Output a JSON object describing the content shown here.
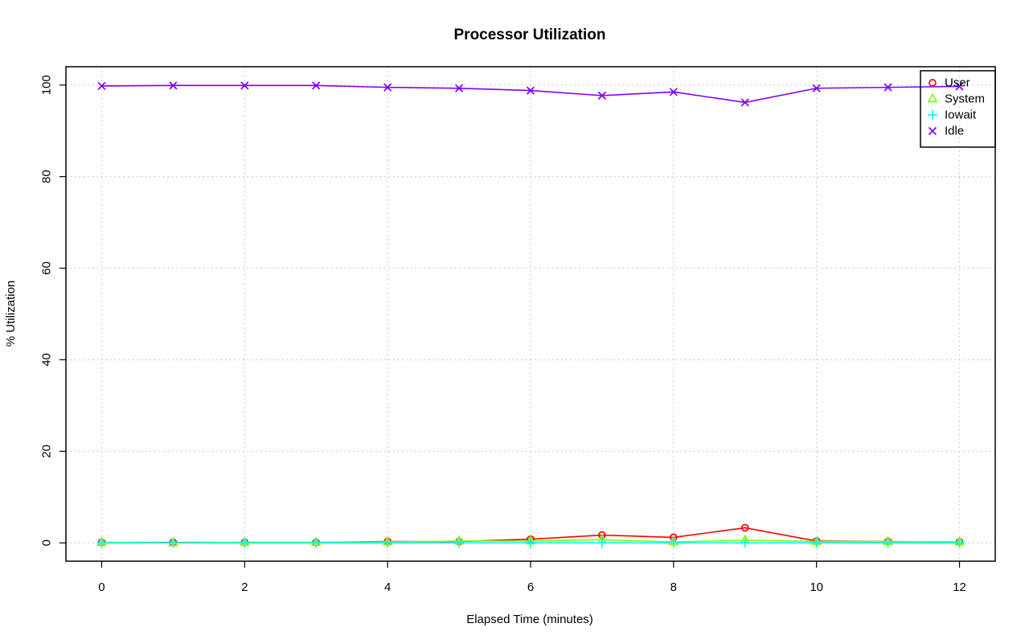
{
  "chart_data": {
    "type": "line",
    "title": "Processor Utilization",
    "xlabel": "Elapsed Time (minutes)",
    "ylabel": "% Utilization",
    "xlim": [
      -0.5,
      12.5
    ],
    "ylim": [
      -4,
      104
    ],
    "x_ticks": [
      0,
      2,
      4,
      6,
      8,
      10,
      12
    ],
    "y_ticks": [
      0,
      20,
      40,
      60,
      80,
      100
    ],
    "grid": true,
    "legend_position": "top-right",
    "x": [
      0,
      1,
      2,
      3,
      4,
      5,
      6,
      7,
      8,
      9,
      10,
      11,
      12
    ],
    "series": [
      {
        "name": "User",
        "color": "#ff0000",
        "marker": "circle",
        "values": [
          0.1,
          0.1,
          0.1,
          0.1,
          0.3,
          0.3,
          0.8,
          1.7,
          1.2,
          3.3,
          0.4,
          0.3,
          0.2
        ]
      },
      {
        "name": "System",
        "color": "#80ff00",
        "marker": "triangle",
        "values": [
          0.1,
          0.0,
          0.1,
          0.1,
          0.2,
          0.4,
          0.4,
          0.7,
          0.2,
          0.6,
          0.3,
          0.3,
          0.2
        ]
      },
      {
        "name": "Iowait",
        "color": "#00ffff",
        "marker": "plus",
        "values": [
          0.0,
          0.0,
          0.0,
          0.0,
          0.0,
          0.0,
          0.0,
          0.0,
          0.0,
          0.0,
          0.0,
          0.0,
          0.0
        ]
      },
      {
        "name": "Idle",
        "color": "#8000ff",
        "marker": "cross",
        "values": [
          99.8,
          99.9,
          99.9,
          99.9,
          99.5,
          99.3,
          98.8,
          97.7,
          98.5,
          96.2,
          99.3,
          99.5,
          99.7
        ]
      }
    ]
  }
}
